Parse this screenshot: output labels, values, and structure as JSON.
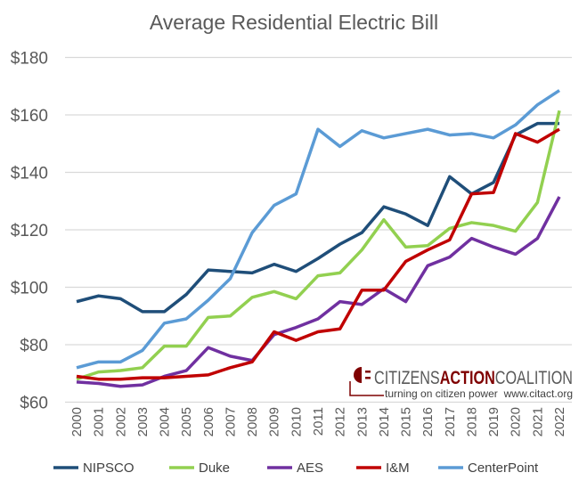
{
  "chart_data": {
    "type": "line",
    "title": "Average Residential Electric Bill",
    "xlabel": "",
    "ylabel": "",
    "ylim": [
      60,
      180
    ],
    "yticks": [
      60,
      80,
      100,
      120,
      140,
      160,
      180
    ],
    "ytick_prefix": "$",
    "grid": true,
    "legend_position": "bottom",
    "x": [
      "2000",
      "2001",
      "2002",
      "2003",
      "2004",
      "2005",
      "2006",
      "2007",
      "2008",
      "2009",
      "2010",
      "2011",
      "2012",
      "2013",
      "2014",
      "2015",
      "2016",
      "2017",
      "2018",
      "2019",
      "2020",
      "2021",
      "2022"
    ],
    "series": [
      {
        "name": "NIPSCO",
        "color": "#1f4e79",
        "values": [
          95,
          97,
          96,
          91.5,
          91.5,
          97.5,
          106,
          105.5,
          105,
          108,
          105.5,
          110,
          115,
          119,
          128,
          125.5,
          121.5,
          138.5,
          132.5,
          136.5,
          153,
          157,
          157
        ]
      },
      {
        "name": "Duke",
        "color": "#92d050",
        "values": [
          68,
          70.5,
          71,
          72,
          79.5,
          79.5,
          89.5,
          90,
          96.5,
          98.5,
          96,
          104,
          105,
          113,
          123.5,
          114,
          114.5,
          120.5,
          122.5,
          121.5,
          119.5,
          129.5,
          161.5
        ]
      },
      {
        "name": "AES",
        "color": "#7030a0",
        "values": [
          67,
          66.5,
          65.5,
          66,
          69,
          71,
          79,
          76,
          74.5,
          83.5,
          86,
          89,
          95,
          94,
          99.5,
          95,
          107.5,
          110.5,
          117,
          114,
          111.5,
          117,
          131.5
        ]
      },
      {
        "name": "I&M",
        "color": "#c00000",
        "values": [
          69,
          68,
          68,
          68.5,
          68.5,
          69,
          69.5,
          72,
          74,
          84.5,
          81.5,
          84.5,
          85.5,
          99,
          99,
          109,
          113,
          116.5,
          132.5,
          133,
          153.5,
          150.5,
          155
        ]
      },
      {
        "name": "CenterPoint",
        "color": "#5b9bd5",
        "values": [
          72,
          74,
          74,
          78,
          87.5,
          89,
          95.5,
          103,
          119,
          128.5,
          132.5,
          155,
          149,
          154.5,
          152,
          153.5,
          155,
          153,
          153.5,
          152,
          156.5,
          163.5,
          168.5
        ]
      }
    ]
  },
  "logo": {
    "text_part1": "CITIZENS",
    "text_part2": "ACTION",
    "text_part3": "COALITION",
    "tagline": "turning on citizen power",
    "website": "www.citact.org",
    "color": "#7f0000"
  }
}
